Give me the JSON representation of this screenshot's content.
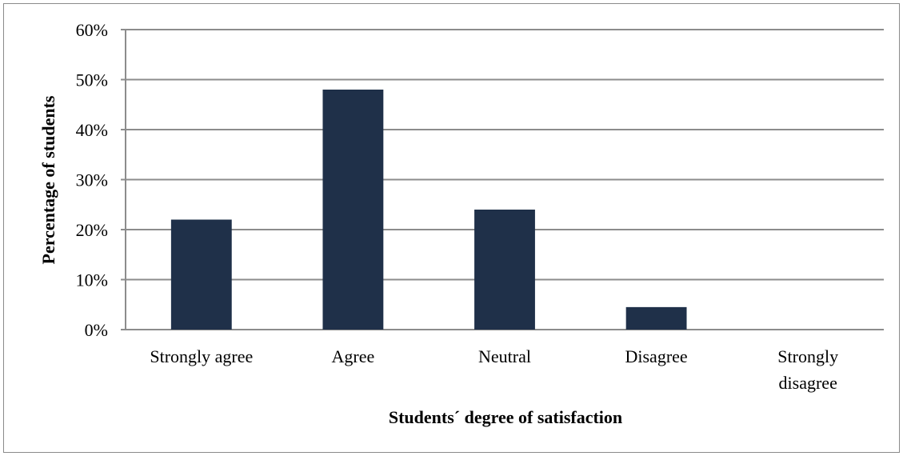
{
  "chart_data": {
    "type": "bar",
    "categories": [
      [
        "Strongly agree"
      ],
      [
        "Agree"
      ],
      [
        "Neutral"
      ],
      [
        "Disagree"
      ],
      [
        "Strongly",
        "disagree"
      ]
    ],
    "values": [
      22,
      48,
      24,
      4.5,
      0
    ],
    "xlabel": "Students´ degree of satisfaction",
    "ylabel": "Percentage of students",
    "ylim": [
      0,
      60
    ],
    "yticks": [
      0,
      10,
      20,
      30,
      40,
      50,
      60
    ],
    "ytick_suffix": "%",
    "grid": true,
    "bar_color": "#1f3049",
    "grid_color": "#8c8c8c"
  }
}
